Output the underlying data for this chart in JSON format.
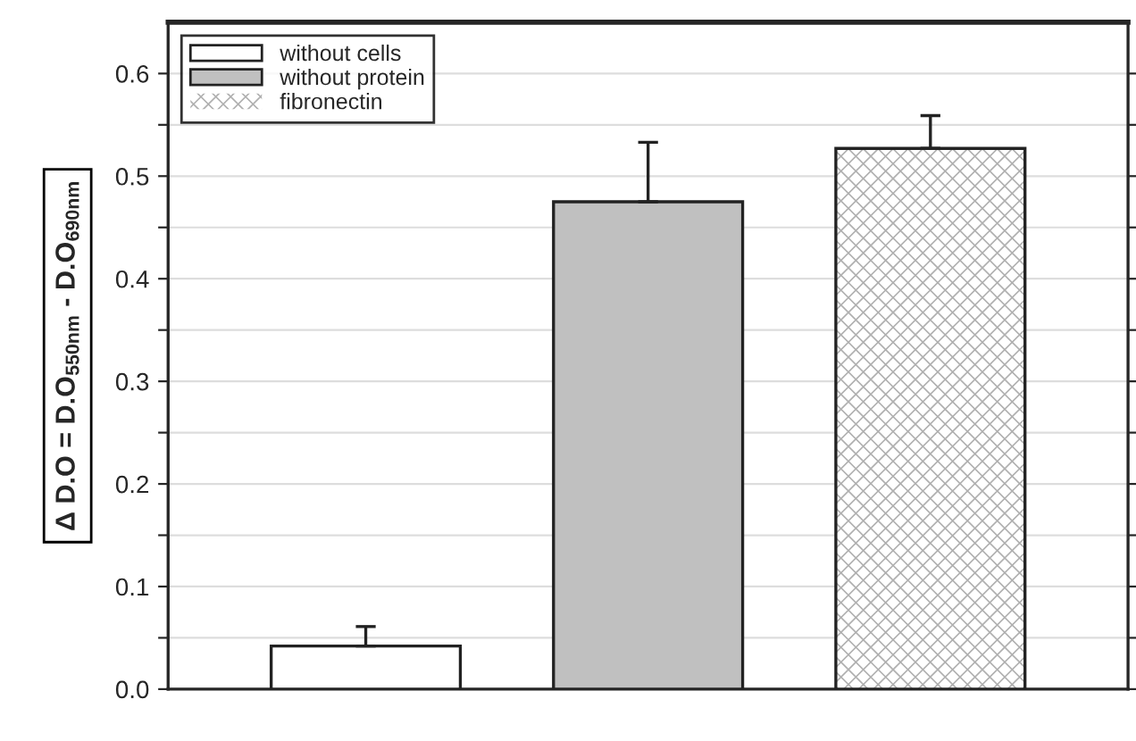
{
  "chart_data": {
    "type": "bar",
    "ylabel": "Δ D.O = D.O$_{550nm}$ - D.O$_{690nm}$",
    "categories": [
      null,
      null,
      null
    ],
    "series": [
      {
        "name": "without cells",
        "color": "#ffffff",
        "values": [
          0.042,
          null,
          null
        ],
        "errors": [
          0.019,
          null,
          null
        ]
      },
      {
        "name": "without protein",
        "color": "#c0c0c0",
        "values": [
          null,
          0.475,
          null
        ],
        "errors": [
          null,
          0.058,
          null
        ]
      },
      {
        "name": "fibronectin",
        "color": "#ffffff",
        "values": [
          null,
          null,
          0.527
        ],
        "errors": [
          null,
          null,
          0.032
        ]
      }
    ],
    "ylim": [
      0,
      0.65
    ],
    "yticks": [
      {
        "value": 0.0,
        "label": "0.0"
      },
      {
        "value": 0.05,
        "label": null
      },
      0.1,
      {
        "value": 0.15,
        "label": null
      },
      0.2,
      {
        "value": 0.25,
        "label": null
      },
      0.3,
      {
        "value": 0.35,
        "label": null
      },
      0.4,
      {
        "value": 0.45,
        "label": null
      },
      0.5,
      {
        "value": 0.55,
        "label": null
      },
      0.6
    ],
    "grid": "y",
    "legend": "top left"
  }
}
